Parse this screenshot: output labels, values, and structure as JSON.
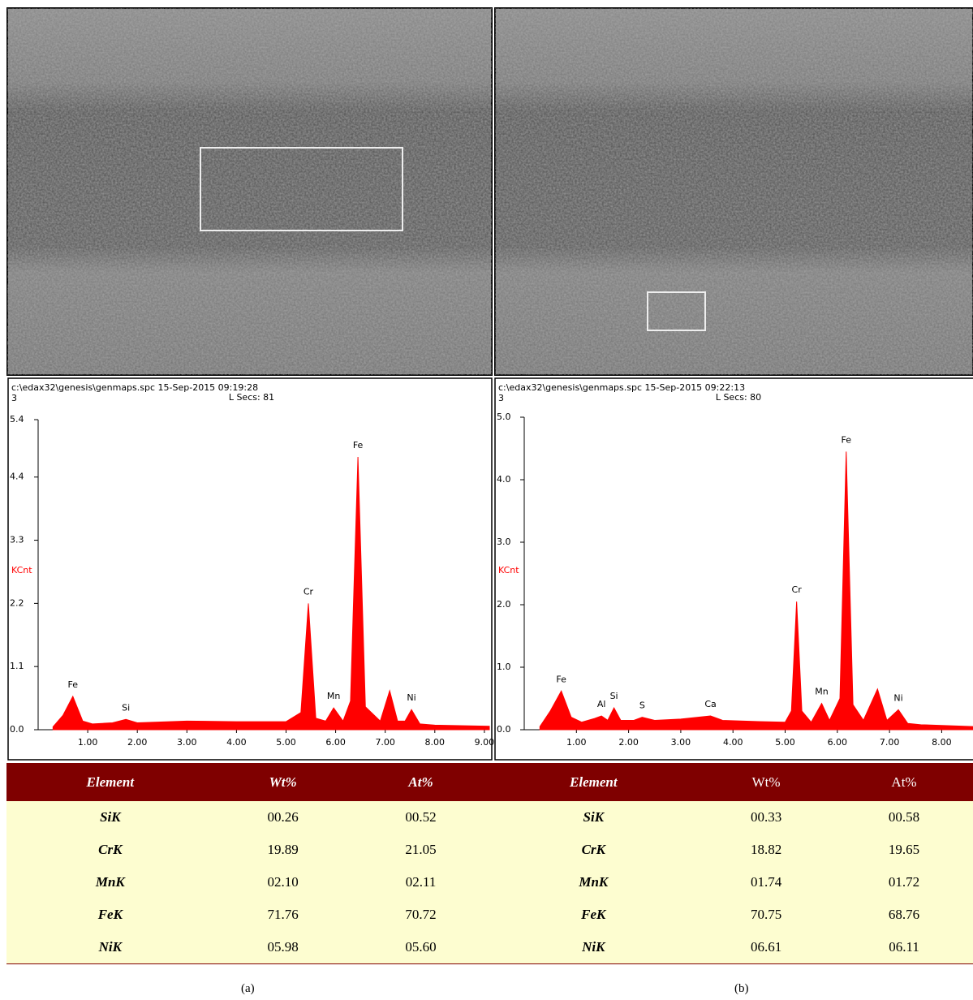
{
  "chart_data": [
    {
      "type": "area",
      "title": "c:\\edax32\\genesis\\genmaps.spc  15-Sep-2015 09:19:28",
      "header_line2": "3",
      "subtitle": "L Secs: 81",
      "y_label": "KCnt",
      "color": "#ff0000",
      "x": [
        0.3,
        0.5,
        0.7,
        0.9,
        1.1,
        1.5,
        1.77,
        2.0,
        3.0,
        4.0,
        5.0,
        5.3,
        5.45,
        5.6,
        5.8,
        5.96,
        6.15,
        6.3,
        6.45,
        6.6,
        6.9,
        7.09,
        7.25,
        7.4,
        7.53,
        7.7,
        8.0,
        9.1
      ],
      "values": [
        0.05,
        0.25,
        0.58,
        0.15,
        0.1,
        0.12,
        0.18,
        0.12,
        0.15,
        0.14,
        0.14,
        0.3,
        2.2,
        0.2,
        0.15,
        0.38,
        0.15,
        0.5,
        4.75,
        0.4,
        0.15,
        0.68,
        0.15,
        0.15,
        0.35,
        0.1,
        0.08,
        0.06
      ],
      "xlim": [
        0,
        9.1
      ],
      "xticks": [
        {
          "value": 1,
          "label": "1.00"
        },
        {
          "value": 2,
          "label": "2.00"
        },
        {
          "value": 3,
          "label": "3.00"
        },
        {
          "value": 4,
          "label": "4.00"
        },
        {
          "value": 5,
          "label": "5.00"
        },
        {
          "value": 6,
          "label": "6.00"
        },
        {
          "value": 7,
          "label": "7.00"
        },
        {
          "value": 8,
          "label": "8.00"
        },
        {
          "value": 9,
          "label": "9.00"
        }
      ],
      "ylim": [
        0,
        5.4
      ],
      "yticks": [
        {
          "value": 0,
          "label": "0.0"
        },
        1.1,
        2.2,
        3.3,
        4.4,
        5.4
      ],
      "annotations": [
        {
          "text": "Fe",
          "x": 0.7,
          "y": 0.58
        },
        {
          "text": "Si",
          "x": 1.77,
          "y": 0.18
        },
        {
          "text": "Cr",
          "x": 5.45,
          "y": 2.2
        },
        {
          "text": "Mn",
          "x": 5.96,
          "y": 0.38
        },
        {
          "text": "Fe",
          "x": 6.45,
          "y": 4.75
        },
        {
          "text": "Ni",
          "x": 7.53,
          "y": 0.35
        }
      ]
    },
    {
      "type": "area",
      "title": "c:\\edax32\\genesis\\genmaps.spc  15-Sep-2015 09:22:13",
      "header_line2": "3",
      "subtitle": "L Secs: 80",
      "y_label": "KCnt",
      "color": "#ff0000",
      "x": [
        0.3,
        0.5,
        0.71,
        0.9,
        1.1,
        1.35,
        1.48,
        1.6,
        1.72,
        1.85,
        2.1,
        2.26,
        2.5,
        3.0,
        3.57,
        3.8,
        4.5,
        5.0,
        5.12,
        5.22,
        5.32,
        5.5,
        5.7,
        5.85,
        6.05,
        6.17,
        6.3,
        6.5,
        6.77,
        6.95,
        7.17,
        7.35,
        7.6,
        8.6
      ],
      "values": [
        0.05,
        0.3,
        0.62,
        0.2,
        0.12,
        0.18,
        0.22,
        0.15,
        0.35,
        0.15,
        0.15,
        0.2,
        0.15,
        0.17,
        0.22,
        0.15,
        0.13,
        0.12,
        0.3,
        2.05,
        0.3,
        0.12,
        0.42,
        0.15,
        0.5,
        4.45,
        0.4,
        0.15,
        0.65,
        0.15,
        0.32,
        0.1,
        0.08,
        0.05
      ],
      "xlim": [
        0,
        8.6
      ],
      "xticks": [
        {
          "value": 1,
          "label": "1.00"
        },
        {
          "value": 2,
          "label": "2.00"
        },
        {
          "value": 3,
          "label": "3.00"
        },
        {
          "value": 4,
          "label": "4.00"
        },
        {
          "value": 5,
          "label": "5.00"
        },
        {
          "value": 6,
          "label": "6.00"
        },
        {
          "value": 7,
          "label": "7.00"
        },
        {
          "value": 8,
          "label": "8.00"
        }
      ],
      "ylim": [
        0,
        5.0
      ],
      "yticks": [
        {
          "value": 0,
          "label": "0.0"
        },
        {
          "value": 1,
          "label": "1.0"
        },
        {
          "value": 2,
          "label": "2.0"
        },
        {
          "value": 3,
          "label": "3.0"
        },
        {
          "value": 4,
          "label": "4.0"
        },
        {
          "value": 5,
          "label": "5.0"
        }
      ],
      "annotations": [
        {
          "text": "Fe",
          "x": 0.71,
          "y": 0.62
        },
        {
          "text": "Al",
          "x": 1.48,
          "y": 0.22
        },
        {
          "text": "Si",
          "x": 1.72,
          "y": 0.35
        },
        {
          "text": "S",
          "x": 2.26,
          "y": 0.2
        },
        {
          "text": "Ca",
          "x": 3.57,
          "y": 0.22
        },
        {
          "text": "Cr",
          "x": 5.22,
          "y": 2.05
        },
        {
          "text": "Mn",
          "x": 5.7,
          "y": 0.42
        },
        {
          "text": "Fe",
          "x": 6.17,
          "y": 4.45
        },
        {
          "text": "Ni",
          "x": 7.17,
          "y": 0.32
        }
      ]
    }
  ],
  "table": {
    "header": [
      "Element",
      "Wt%",
      "At%",
      "Element",
      "Wt%",
      "At%"
    ],
    "rows": [
      [
        "SiK",
        "00.26",
        "00.52",
        "SiK",
        "00.33",
        "00.58"
      ],
      [
        "CrK",
        "19.89",
        "21.05",
        "CrK",
        "18.82",
        "19.65"
      ],
      [
        "MnK",
        "02.10",
        "02.11",
        "MnK",
        "01.74",
        "01.72"
      ],
      [
        "FeK",
        "71.76",
        "70.72",
        "FeK",
        "70.75",
        "68.76"
      ],
      [
        "NiK",
        "05.98",
        "05.60",
        "NiK",
        "06.61",
        "06.11"
      ]
    ]
  },
  "captions": [
    "(a)",
    "(b)"
  ]
}
